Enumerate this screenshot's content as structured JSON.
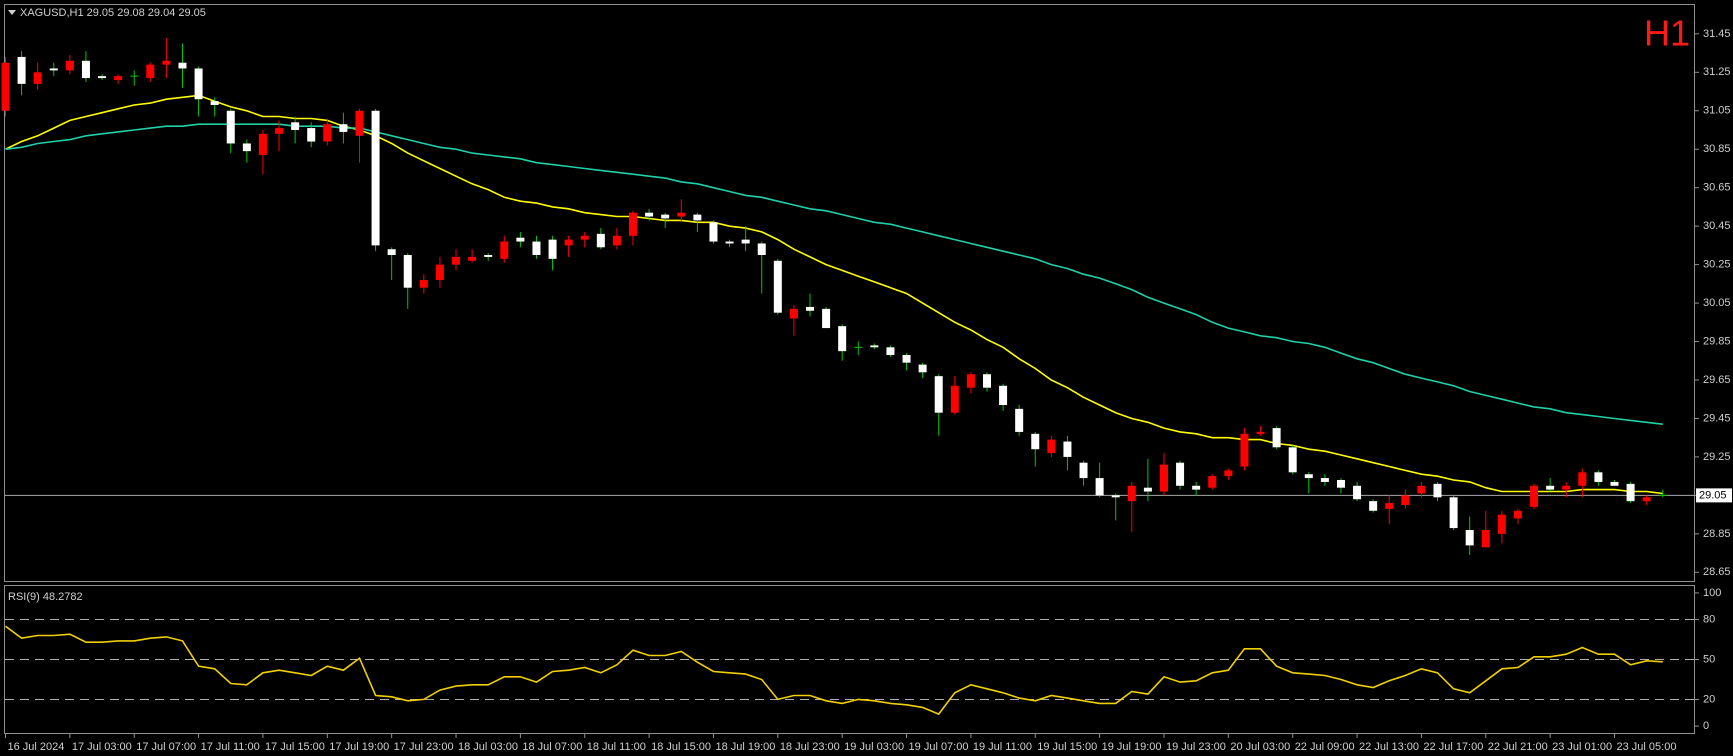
{
  "chart_data": [
    {
      "type": "candlestick",
      "header": "XAGUSD,H1  29.05 29.08 29.04 29.05",
      "timeframe": "H1",
      "categories": [
        "16 Jul 2024",
        null,
        null,
        null,
        "17 Jul 03:00",
        null,
        null,
        null,
        "17 Jul 07:00",
        null,
        null,
        null,
        "17 Jul 11:00",
        null,
        null,
        null,
        "17 Jul 15:00",
        null,
        null,
        null,
        "17 Jul 19:00",
        null,
        null,
        null,
        "17 Jul 23:00",
        null,
        null,
        null,
        "18 Jul 03:00",
        null,
        null,
        null,
        "18 Jul 07:00",
        null,
        null,
        null,
        "18 Jul 11:00",
        null,
        null,
        null,
        "18 Jul 15:00",
        null,
        null,
        null,
        "18 Jul 19:00",
        null,
        null,
        null,
        "18 Jul 23:00",
        null,
        null,
        null,
        "19 Jul 03:00",
        null,
        null,
        null,
        "19 Jul 07:00",
        null,
        null,
        null,
        "19 Jul 11:00",
        null,
        null,
        null,
        "19 Jul 15:00",
        null,
        null,
        null,
        "19 Jul 19:00",
        null,
        null,
        null,
        "19 Jul 23:00",
        null,
        null,
        null,
        "20 Jul 03:00",
        null,
        null,
        null,
        "22 Jul 09:00",
        null,
        null,
        null,
        "22 Jul 13:00",
        null,
        null,
        null,
        "22 Jul 17:00",
        null,
        null,
        null,
        "22 Jul 21:00",
        null,
        null,
        null,
        "23 Jul 01:00",
        null,
        null,
        null,
        "23 Jul 05:00",
        null,
        null,
        null
      ],
      "open": [
        31.05,
        31.33,
        31.19,
        31.27,
        31.26,
        31.31,
        31.23,
        31.21,
        31.23,
        31.22,
        31.29,
        31.3,
        31.27,
        31.1,
        31.05,
        30.88,
        30.82,
        30.93,
        30.99,
        30.96,
        30.89,
        30.98,
        30.92,
        31.05,
        30.33,
        30.3,
        30.13,
        30.17,
        30.25,
        30.27,
        30.3,
        30.28,
        30.39,
        30.37,
        30.38,
        30.35,
        30.38,
        30.41,
        30.35,
        30.4,
        30.52,
        30.51,
        30.5,
        30.51,
        30.47,
        30.37,
        30.38,
        30.36,
        30.27,
        29.97,
        30.03,
        30.02,
        29.93,
        29.82,
        29.83,
        29.82,
        29.78,
        29.73,
        29.67,
        29.48,
        29.61,
        29.68,
        29.62,
        29.5,
        29.37,
        29.27,
        29.33,
        29.22,
        29.14,
        29.05,
        29.02,
        29.09,
        29.07,
        29.22,
        29.1,
        29.09,
        29.15,
        29.2,
        29.37,
        29.4,
        29.3,
        29.16,
        29.14,
        29.13,
        29.1,
        29.02,
        28.98,
        29.0,
        29.06,
        29.11,
        29.04,
        28.87,
        28.78,
        28.85,
        28.93,
        28.99,
        29.1,
        29.08,
        29.1,
        29.17,
        29.12,
        29.11,
        29.02,
        29.05
      ],
      "high": [
        31.33,
        31.36,
        31.3,
        31.3,
        31.34,
        31.36,
        31.24,
        31.24,
        31.26,
        31.3,
        31.43,
        31.4,
        31.28,
        31.12,
        31.06,
        30.9,
        30.95,
        31.0,
        31.02,
        30.99,
        31.01,
        31.04,
        31.06,
        31.06,
        30.34,
        30.31,
        30.2,
        30.29,
        30.33,
        30.33,
        30.31,
        30.4,
        30.42,
        30.4,
        30.4,
        30.4,
        30.42,
        30.44,
        30.44,
        30.53,
        30.54,
        30.52,
        30.59,
        30.52,
        30.48,
        30.38,
        30.45,
        30.37,
        30.28,
        30.04,
        30.1,
        30.03,
        29.94,
        29.85,
        29.84,
        29.83,
        29.79,
        29.74,
        29.68,
        29.67,
        29.69,
        29.69,
        29.63,
        29.52,
        29.38,
        29.36,
        29.36,
        29.23,
        29.22,
        29.06,
        29.12,
        29.24,
        29.27,
        29.23,
        29.12,
        29.16,
        29.19,
        29.4,
        29.41,
        29.41,
        29.31,
        29.17,
        29.16,
        29.14,
        29.12,
        29.03,
        29.05,
        29.08,
        29.12,
        29.12,
        29.05,
        28.94,
        28.97,
        28.97,
        28.98,
        29.11,
        29.14,
        29.12,
        29.19,
        29.18,
        29.13,
        29.12,
        29.05,
        29.08
      ],
      "low": [
        31.02,
        31.13,
        31.16,
        31.23,
        31.24,
        31.2,
        31.21,
        31.19,
        31.18,
        31.2,
        31.22,
        31.17,
        31.02,
        31.02,
        30.83,
        30.78,
        30.72,
        30.84,
        30.88,
        30.86,
        30.87,
        30.88,
        30.78,
        30.32,
        30.17,
        30.02,
        30.1,
        30.13,
        30.22,
        30.26,
        30.27,
        30.26,
        30.34,
        30.28,
        30.22,
        30.29,
        30.34,
        30.33,
        30.33,
        30.35,
        30.48,
        30.44,
        30.47,
        30.42,
        30.36,
        30.34,
        30.32,
        30.1,
        29.99,
        29.88,
        29.98,
        29.92,
        29.75,
        29.78,
        29.81,
        29.77,
        29.7,
        29.66,
        29.36,
        29.47,
        29.58,
        29.59,
        29.49,
        29.36,
        29.2,
        29.25,
        29.18,
        29.1,
        29.04,
        28.92,
        28.86,
        29.02,
        29.05,
        29.08,
        29.05,
        29.08,
        29.13,
        29.18,
        29.36,
        29.29,
        29.16,
        29.06,
        29.1,
        29.06,
        29.02,
        28.96,
        28.9,
        28.98,
        29.04,
        29.02,
        28.87,
        28.74,
        28.78,
        28.8,
        28.9,
        28.98,
        29.07,
        29.04,
        29.04,
        29.1,
        29.1,
        29.01,
        29.0,
        29.04
      ],
      "close": [
        31.3,
        31.19,
        31.25,
        31.26,
        31.31,
        31.22,
        31.22,
        31.23,
        31.23,
        31.29,
        31.31,
        31.27,
        31.11,
        31.08,
        30.88,
        30.84,
        30.93,
        30.96,
        30.95,
        30.89,
        30.98,
        30.94,
        31.05,
        30.35,
        30.3,
        30.13,
        30.17,
        30.25,
        30.29,
        30.29,
        30.29,
        30.37,
        30.37,
        30.3,
        30.28,
        30.38,
        30.4,
        30.34,
        30.4,
        30.52,
        30.5,
        30.49,
        30.52,
        30.48,
        30.37,
        30.36,
        30.36,
        30.3,
        30.0,
        30.02,
        30.01,
        29.92,
        29.8,
        29.82,
        29.82,
        29.78,
        29.74,
        29.69,
        29.48,
        29.62,
        29.68,
        29.61,
        29.52,
        29.38,
        29.29,
        29.34,
        29.25,
        29.14,
        29.05,
        29.04,
        29.1,
        29.07,
        29.21,
        29.1,
        29.08,
        29.15,
        29.18,
        29.37,
        29.38,
        29.3,
        29.17,
        29.14,
        29.12,
        29.09,
        29.03,
        28.97,
        29.01,
        29.05,
        29.1,
        29.04,
        28.88,
        28.79,
        28.87,
        28.95,
        28.97,
        29.1,
        29.08,
        29.1,
        29.17,
        29.12,
        29.1,
        29.02,
        29.04,
        29.05
      ],
      "up_color": "#ff0000",
      "down_color": "#ffffff",
      "wick_color": "#00c800",
      "lines": [
        {
          "color": "#ffff00",
          "values": [
            30.85,
            30.89,
            30.92,
            30.96,
            31.0,
            31.02,
            31.04,
            31.06,
            31.08,
            31.09,
            31.11,
            31.12,
            31.13,
            31.1,
            31.07,
            31.05,
            31.02,
            31.02,
            31.01,
            31.01,
            31.0,
            30.97,
            30.95,
            30.92,
            30.88,
            30.83,
            30.79,
            30.75,
            30.71,
            30.67,
            30.64,
            30.6,
            30.58,
            30.57,
            30.55,
            30.54,
            30.52,
            30.51,
            30.5,
            30.5,
            30.49,
            30.48,
            30.48,
            30.47,
            30.47,
            30.45,
            30.44,
            30.42,
            30.38,
            30.33,
            30.29,
            30.25,
            30.22,
            30.19,
            30.16,
            30.13,
            30.1,
            30.05,
            30.0,
            29.95,
            29.91,
            29.86,
            29.82,
            29.76,
            29.71,
            29.65,
            29.61,
            29.56,
            29.52,
            29.48,
            29.45,
            29.43,
            29.4,
            29.38,
            29.37,
            29.35,
            29.35,
            29.34,
            29.34,
            29.32,
            29.31,
            29.29,
            29.28,
            29.26,
            29.24,
            29.22,
            29.2,
            29.18,
            29.16,
            29.15,
            29.13,
            29.12,
            29.09,
            29.07,
            29.07,
            29.07,
            29.07,
            29.07,
            29.08,
            29.08,
            29.08,
            29.07,
            29.07,
            29.06
          ]
        },
        {
          "color": "#20d0a8",
          "values": [
            30.85,
            30.86,
            30.88,
            30.89,
            30.9,
            30.92,
            30.93,
            30.94,
            30.95,
            30.96,
            30.97,
            30.97,
            30.98,
            30.98,
            30.98,
            30.98,
            30.98,
            30.98,
            30.97,
            30.97,
            30.97,
            30.96,
            30.96,
            30.94,
            30.92,
            30.9,
            30.88,
            30.86,
            30.85,
            30.83,
            30.82,
            30.81,
            30.8,
            30.78,
            30.77,
            30.76,
            30.75,
            30.74,
            30.73,
            30.72,
            30.71,
            30.7,
            30.68,
            30.67,
            30.65,
            30.63,
            30.61,
            30.6,
            30.58,
            30.56,
            30.54,
            30.53,
            30.51,
            30.49,
            30.47,
            30.46,
            30.44,
            30.42,
            30.4,
            30.38,
            30.36,
            30.34,
            30.32,
            30.3,
            30.28,
            30.25,
            30.23,
            30.2,
            30.18,
            30.15,
            30.12,
            30.08,
            30.05,
            30.02,
            29.99,
            29.95,
            29.92,
            29.9,
            29.88,
            29.87,
            29.85,
            29.84,
            29.82,
            29.79,
            29.76,
            29.74,
            29.71,
            29.68,
            29.66,
            29.64,
            29.62,
            29.59,
            29.57,
            29.55,
            29.53,
            29.51,
            29.5,
            29.48,
            29.47,
            29.46,
            29.45,
            29.44,
            29.43,
            29.42
          ]
        }
      ],
      "last_price": 29.05,
      "ylim": [
        28.61,
        31.6
      ],
      "yticks": [
        31.45,
        31.25,
        31.05,
        30.85,
        30.65,
        30.45,
        30.25,
        30.05,
        29.85,
        29.65,
        29.45,
        29.25,
        29.05,
        28.85,
        28.65
      ]
    },
    {
      "type": "line",
      "title": "RSI(9) 48.2782",
      "values": [
        75,
        66,
        68,
        68,
        69,
        63,
        63,
        64,
        64,
        66,
        67,
        64,
        45,
        43,
        32,
        31,
        40,
        42,
        40,
        38,
        45,
        42,
        51,
        23,
        22,
        19,
        20,
        27,
        30,
        31,
        31,
        37,
        37,
        33,
        41,
        42,
        44,
        40,
        46,
        57,
        53,
        53,
        56,
        48,
        41,
        40,
        39,
        35,
        20,
        23,
        23,
        19,
        17,
        20,
        19,
        17,
        16,
        14,
        9,
        25,
        31,
        28,
        25,
        21,
        19,
        23,
        21,
        19,
        17,
        17,
        26,
        24,
        37,
        33,
        34,
        40,
        42,
        58,
        58,
        45,
        40,
        39,
        38,
        35,
        31,
        29,
        34,
        38,
        43,
        40,
        28,
        25,
        34,
        43,
        44,
        52,
        52,
        54,
        59,
        54,
        54,
        46,
        49,
        48.2782
      ],
      "color": "#f0d000",
      "ylim": [
        -5.2,
        105.2
      ],
      "yticks": [
        100,
        80,
        50,
        20,
        0
      ],
      "levels": [
        80,
        50,
        20
      ]
    }
  ]
}
